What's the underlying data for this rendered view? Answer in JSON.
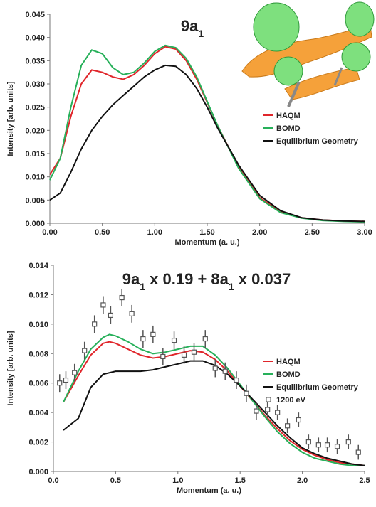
{
  "chart_data": [
    {
      "type": "line",
      "title_parts": [
        {
          "text": "9a"
        },
        {
          "text": "1",
          "sub": true
        }
      ],
      "x_label": "Momentum (a. u.)",
      "y_label": "Intensity [arb. units]",
      "x": [
        0,
        0.1,
        0.2,
        0.3,
        0.4,
        0.5,
        0.6,
        0.7,
        0.8,
        0.9,
        1.0,
        1.1,
        1.2,
        1.3,
        1.4,
        1.5,
        1.6,
        1.8,
        2.0,
        2.2,
        2.4,
        2.6,
        2.8,
        3.0
      ],
      "series": [
        {
          "name": "HAQM",
          "color": "#e0262b",
          "values": [
            0.0105,
            0.014,
            0.023,
            0.03,
            0.033,
            0.0325,
            0.0315,
            0.031,
            0.032,
            0.034,
            0.0365,
            0.038,
            0.0375,
            0.035,
            0.031,
            0.026,
            0.021,
            0.012,
            0.0055,
            0.0025,
            0.0012,
            0.0007,
            0.0005,
            0.0004
          ]
        },
        {
          "name": "BOMD",
          "color": "#27b05a",
          "values": [
            0.0093,
            0.014,
            0.025,
            0.034,
            0.0373,
            0.0365,
            0.0335,
            0.032,
            0.0325,
            0.0345,
            0.037,
            0.0383,
            0.0378,
            0.0355,
            0.0315,
            0.0262,
            0.021,
            0.0118,
            0.0053,
            0.0023,
            0.0011,
            0.0006,
            0.0004,
            0.0003
          ]
        },
        {
          "name": "Equilibrium Geometry",
          "color": "#111111",
          "values": [
            0.005,
            0.0065,
            0.011,
            0.016,
            0.02,
            0.023,
            0.0255,
            0.0275,
            0.0295,
            0.0315,
            0.033,
            0.034,
            0.0338,
            0.032,
            0.029,
            0.025,
            0.0205,
            0.0125,
            0.006,
            0.0027,
            0.0012,
            0.0007,
            0.0005,
            0.0004
          ]
        }
      ],
      "xlim": [
        0,
        3
      ],
      "xticks": [
        {
          "value": 0,
          "label": "0.00"
        },
        {
          "value": 0.5,
          "label": "0.50"
        },
        {
          "value": 1,
          "label": "1.00"
        },
        {
          "value": 1.5,
          "label": "1.50"
        },
        {
          "value": 2,
          "label": "2.00"
        },
        {
          "value": 2.5,
          "label": "2.50"
        },
        {
          "value": 3,
          "label": "3.00"
        }
      ],
      "ylim": [
        0,
        0.045
      ],
      "yticks": [
        {
          "value": 0,
          "label": "0.000"
        },
        0.005,
        {
          "value": 0.01,
          "label": "0.010"
        },
        0.015,
        {
          "value": 0.02,
          "label": "0.020"
        },
        0.025,
        {
          "value": 0.03,
          "label": "0.030"
        },
        0.035,
        {
          "value": 0.04,
          "label": "0.040"
        },
        0.045
      ],
      "legend": "right"
    },
    {
      "type": "line",
      "title_parts": [
        {
          "text": "9a"
        },
        {
          "text": "1",
          "sub": true
        },
        {
          "text": " x 0.19 + 8a"
        },
        {
          "text": "1",
          "sub": true
        },
        {
          "text": " x 0.037"
        }
      ],
      "x_label": "Momentum (a. u.)",
      "y_label": "Intensity [arb. units]",
      "series": [
        {
          "name": "HAQM",
          "color": "#e0262b",
          "x": [
            0.08,
            0.2,
            0.3,
            0.4,
            0.45,
            0.5,
            0.6,
            0.7,
            0.8,
            0.9,
            1.0,
            1.1,
            1.2,
            1.3,
            1.4,
            1.5,
            1.6,
            1.7,
            1.8,
            1.9,
            2.0,
            2.1,
            2.2,
            2.3,
            2.4,
            2.5
          ],
          "values": [
            0.0047,
            0.0065,
            0.0079,
            0.0087,
            0.0088,
            0.0087,
            0.0083,
            0.0079,
            0.0077,
            0.0078,
            0.008,
            0.0082,
            0.0081,
            0.0076,
            0.0068,
            0.0058,
            0.0048,
            0.0038,
            0.0029,
            0.0021,
            0.0015,
            0.0011,
            0.0008,
            0.0006,
            0.0005,
            0.0004
          ]
        },
        {
          "name": "BOMD",
          "color": "#27b05a",
          "x": [
            0.08,
            0.2,
            0.3,
            0.4,
            0.45,
            0.5,
            0.6,
            0.7,
            0.8,
            0.9,
            1.0,
            1.1,
            1.2,
            1.3,
            1.4,
            1.5,
            1.6,
            1.7,
            1.8,
            1.9,
            2.0,
            2.1,
            2.2,
            2.3,
            2.4,
            2.5
          ],
          "values": [
            0.0047,
            0.0068,
            0.0083,
            0.0091,
            0.0093,
            0.0092,
            0.0088,
            0.0083,
            0.008,
            0.0081,
            0.0083,
            0.0085,
            0.0085,
            0.0079,
            0.007,
            0.0059,
            0.0048,
            0.0037,
            0.0027,
            0.0019,
            0.0013,
            0.0009,
            0.0007,
            0.0005,
            0.0004,
            0.0004
          ]
        },
        {
          "name": "Equilibrium Geometry",
          "color": "#111111",
          "x": [
            0.08,
            0.2,
            0.3,
            0.4,
            0.5,
            0.6,
            0.7,
            0.8,
            0.9,
            1.0,
            1.1,
            1.2,
            1.3,
            1.4,
            1.5,
            1.6,
            1.7,
            1.8,
            1.9,
            2.0,
            2.1,
            2.2,
            2.3,
            2.4,
            2.5
          ],
          "values": [
            0.0028,
            0.0036,
            0.0057,
            0.0066,
            0.0068,
            0.0068,
            0.0068,
            0.0069,
            0.0071,
            0.0073,
            0.0075,
            0.0075,
            0.0072,
            0.0066,
            0.0058,
            0.0049,
            0.004,
            0.0031,
            0.0023,
            0.0016,
            0.0012,
            0.0009,
            0.0007,
            0.0005,
            0.0004
          ]
        },
        {
          "name": "1200 eV",
          "color": "#555555",
          "marker": "square",
          "x": [
            0.05,
            0.1,
            0.17,
            0.25,
            0.33,
            0.4,
            0.46,
            0.55,
            0.63,
            0.72,
            0.8,
            0.88,
            0.97,
            1.05,
            1.13,
            1.22,
            1.3,
            1.38,
            1.47,
            1.55,
            1.63,
            1.72,
            1.8,
            1.88,
            1.97,
            2.05,
            2.13,
            2.2,
            2.28,
            2.37,
            2.45
          ],
          "values": [
            0.006,
            0.0062,
            0.0067,
            0.0082,
            0.01,
            0.0113,
            0.0106,
            0.0118,
            0.0107,
            0.009,
            0.0093,
            0.0078,
            0.0089,
            0.0079,
            0.0081,
            0.009,
            0.007,
            0.0068,
            0.0062,
            0.0053,
            0.0041,
            0.0042,
            0.004,
            0.0031,
            0.0035,
            0.002,
            0.0018,
            0.0018,
            0.0017,
            0.002,
            0.0013
          ],
          "errors": [
            0.0006,
            0.0006,
            0.0006,
            0.0006,
            0.0006,
            0.0006,
            0.0006,
            0.0006,
            0.0006,
            0.0006,
            0.0006,
            0.0006,
            0.0006,
            0.0006,
            0.0006,
            0.0006,
            0.0006,
            0.0006,
            0.0006,
            0.0006,
            0.0006,
            0.0005,
            0.0005,
            0.0005,
            0.0005,
            0.0005,
            0.0005,
            0.0005,
            0.0005,
            0.0005,
            0.0005
          ]
        }
      ],
      "xlim": [
        0,
        2.5
      ],
      "xticks": [
        {
          "value": 0,
          "label": "0.0"
        },
        0.5,
        {
          "value": 1,
          "label": "1.0"
        },
        1.5,
        {
          "value": 2,
          "label": "2.0"
        },
        2.5
      ],
      "ylim": [
        0,
        0.014
      ],
      "yticks": [
        {
          "value": 0,
          "label": "0.000"
        },
        0.002,
        0.004,
        0.006,
        0.008,
        {
          "value": 0.01,
          "label": "0.010"
        },
        {
          "value": 0.012,
          "label": "0.012"
        },
        {
          "value": 0.014,
          "label": "0.014"
        }
      ],
      "legend": "right"
    }
  ]
}
